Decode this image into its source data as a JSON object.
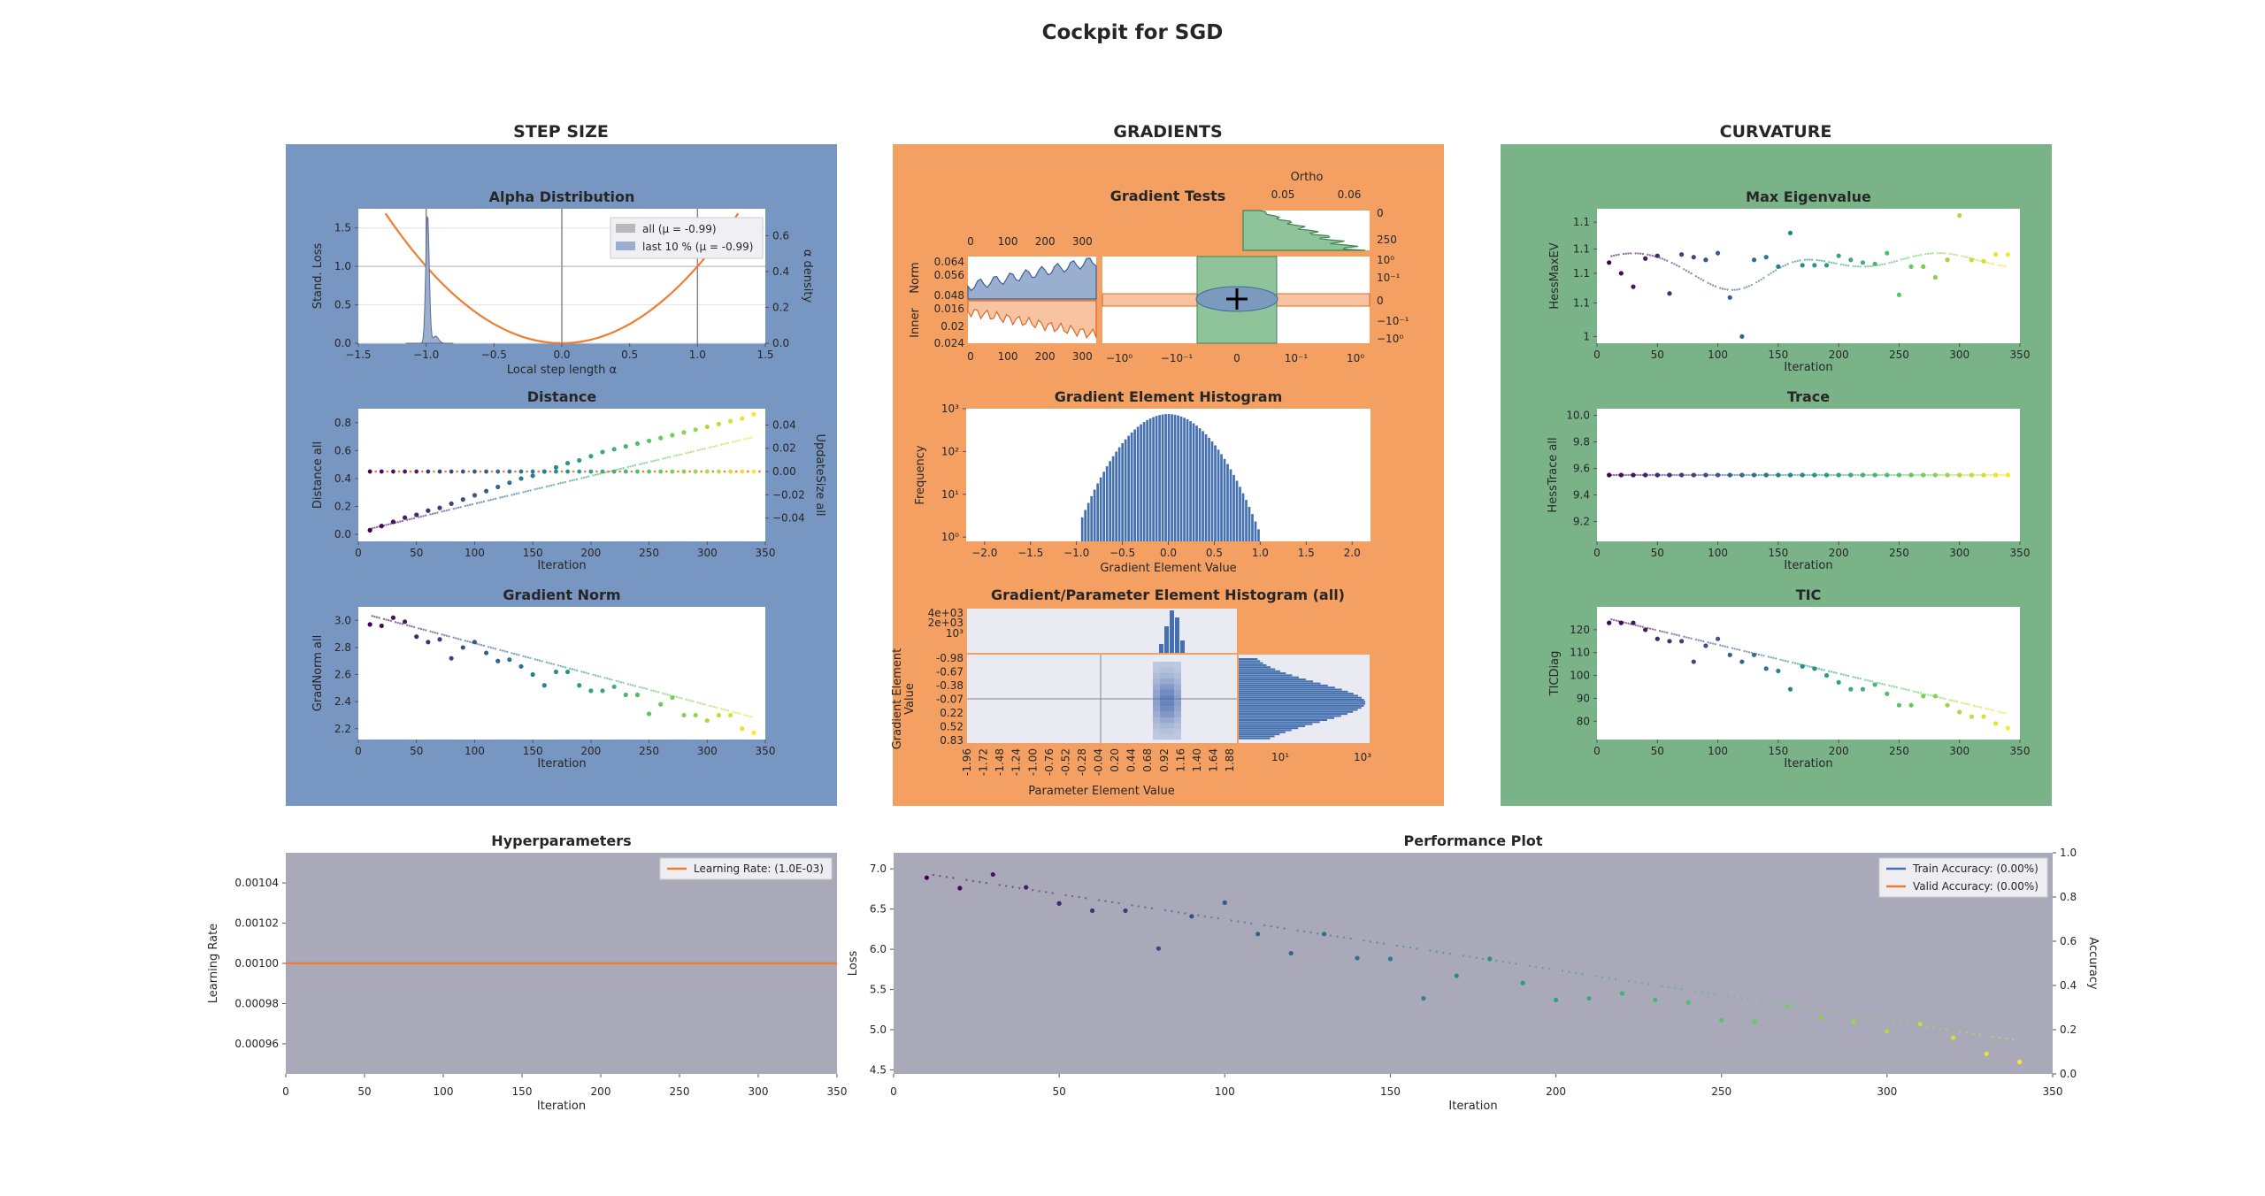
{
  "figure": {
    "title": "Cockpit for SGD"
  },
  "sections": {
    "step_size": "STEP SIZE",
    "gradients": "GRADIENTS",
    "curvature": "CURVATURE"
  },
  "colors": {
    "step_size_bg": "#7896c2",
    "gradients_bg": "#f4a063",
    "curvature_bg": "#7bb389",
    "plot_bg": "#ffffff",
    "hyper_bg": "#a9a9b9",
    "orange": "#ee7d32",
    "blue": "#4470b0",
    "green": "#418553"
  },
  "chart_data": [
    {
      "id": "alpha",
      "type": "line",
      "title": "Alpha Distribution",
      "xlabel": "Local step length α",
      "ylabel": "Stand. Loss",
      "ylabel_right": "α density",
      "xlim": [
        -1.5,
        1.5
      ],
      "ylim": [
        0,
        1.75
      ],
      "ylim_right": [
        0,
        0.75
      ],
      "xticks": [
        "−1.5",
        "−1.0",
        "−0.5",
        "0.0",
        "0.5",
        "1.0",
        "1.5"
      ],
      "yticks": [
        "0.0",
        "0.5",
        "1.0",
        "1.5"
      ],
      "yticks_right": [
        "0.0",
        "0.2",
        "0.4",
        "0.6"
      ],
      "legend": [
        "all (μ = -0.99)",
        "last 10 % (μ = -0.99)"
      ],
      "legend_position": "top-right",
      "parabola": "y = x²",
      "vertical_lines": [
        -1,
        0,
        1
      ],
      "density_peak_x": -0.99
    },
    {
      "id": "distance",
      "type": "scatter",
      "title": "Distance",
      "xlabel": "Iteration",
      "ylabel": "Distance all",
      "ylabel_right": "UpdateSize all",
      "xlim": [
        0,
        350
      ],
      "ylim": [
        -0.05,
        0.9
      ],
      "ylim_right": [
        -0.06,
        0.054
      ],
      "xticks": [
        "0",
        "50",
        "100",
        "150",
        "200",
        "250",
        "300",
        "350"
      ],
      "yticks": [
        "0.0",
        "0.2",
        "0.4",
        "0.6",
        "0.8"
      ],
      "yticks_right": [
        "−0.04",
        "−0.02",
        "0.00",
        "0.02",
        "0.04"
      ],
      "x": [
        10,
        20,
        30,
        40,
        50,
        60,
        70,
        80,
        90,
        100,
        110,
        120,
        130,
        140,
        150,
        160,
        170,
        180,
        190,
        200,
        210,
        220,
        230,
        240,
        250,
        260,
        270,
        280,
        290,
        300,
        310,
        320,
        330,
        340
      ],
      "distance": [
        0.03,
        0.06,
        0.09,
        0.12,
        0.14,
        0.17,
        0.19,
        0.22,
        0.25,
        0.28,
        0.31,
        0.34,
        0.37,
        0.4,
        0.42,
        0.45,
        0.48,
        0.51,
        0.53,
        0.56,
        0.59,
        0.61,
        0.63,
        0.65,
        0.67,
        0.69,
        0.71,
        0.73,
        0.75,
        0.77,
        0.79,
        0.81,
        0.83,
        0.86
      ],
      "update_size": [
        0,
        0,
        0,
        0,
        0,
        0,
        0,
        0,
        0,
        0,
        0,
        0,
        0,
        0,
        0,
        0,
        0,
        0,
        0,
        0,
        0,
        0,
        0,
        0,
        0,
        0,
        0,
        0,
        0,
        0,
        0,
        0,
        0,
        0
      ]
    },
    {
      "id": "gradnorm",
      "type": "scatter",
      "title": "Gradient Norm",
      "xlabel": "Iteration",
      "ylabel": "GradNorm all",
      "xlim": [
        0,
        350
      ],
      "ylim": [
        2.12,
        3.1
      ],
      "xticks": [
        "0",
        "50",
        "100",
        "150",
        "200",
        "250",
        "300",
        "350"
      ],
      "yticks": [
        "2.2",
        "2.4",
        "2.6",
        "2.8",
        "3.0"
      ],
      "x": [
        10,
        20,
        30,
        40,
        50,
        60,
        70,
        80,
        90,
        100,
        110,
        120,
        130,
        140,
        150,
        160,
        170,
        180,
        190,
        200,
        210,
        220,
        230,
        240,
        250,
        260,
        270,
        280,
        290,
        300,
        310,
        320,
        330,
        340
      ],
      "y": [
        2.97,
        2.96,
        3.02,
        2.99,
        2.88,
        2.84,
        2.86,
        2.72,
        2.8,
        2.84,
        2.76,
        2.7,
        2.71,
        2.66,
        2.6,
        2.52,
        2.62,
        2.62,
        2.52,
        2.48,
        2.48,
        2.51,
        2.45,
        2.45,
        2.31,
        2.38,
        2.43,
        2.3,
        2.3,
        2.26,
        2.3,
        2.3,
        2.2,
        2.17
      ]
    },
    {
      "id": "gradtests",
      "type": "line",
      "title": "Gradient Tests",
      "ortho_label": "Ortho",
      "ortho_xticks": [
        "0.05",
        "0.06"
      ],
      "ortho_yticks": [
        "0",
        "250"
      ],
      "norm_label": "Norm",
      "inner_label": "Inner",
      "norm_yticks": [
        "0.064",
        "0.056",
        "0.048"
      ],
      "inner_yticks": [
        "0.016",
        "0.02",
        "0.024"
      ],
      "top_xticks": [
        "0",
        "100",
        "200",
        "300"
      ],
      "bottom_xticks": [
        "0",
        "100",
        "200",
        "300"
      ],
      "center_xticks": [
        "−10⁰",
        "−10⁻¹",
        "0",
        "10⁻¹",
        "10⁰"
      ],
      "center_yticks": [
        "10⁰",
        "10⁻¹",
        "0",
        "−10⁻¹",
        "−10⁰"
      ]
    },
    {
      "id": "gradhist",
      "type": "bar",
      "title": "Gradient Element Histogram",
      "xlabel": "Gradient Element Value",
      "ylabel": "Frequency",
      "xlim": [
        -2.2,
        2.2
      ],
      "ylim_log10": [
        -0.1,
        3
      ],
      "xticks": [
        "−2.0",
        "−1.5",
        "−1.0",
        "−0.5",
        "0.0",
        "0.5",
        "1.0",
        "1.5",
        "2.0"
      ],
      "yticks": [
        "10⁰",
        "10¹",
        "10²",
        "10³"
      ],
      "distribution": "approximately normal, std 0.28, range −0.95 to 1.07",
      "peak_count": 750
    },
    {
      "id": "gphist",
      "type": "heatmap",
      "title": "Gradient/Parameter Element Histogram (all)",
      "xlabel": "Parameter Element Value",
      "ylabel": "Gradient Element Value",
      "top_yticks": [
        "4e+03",
        "2e+03",
        "10³"
      ],
      "right_xticks": [
        "10¹",
        "10³"
      ],
      "xticks": [
        "-1.96",
        "-1.72",
        "-1.48",
        "-1.24",
        "-1.00",
        "-0.76",
        "-0.52",
        "-0.28",
        "-0.04",
        "0.20",
        "0.44",
        "0.68",
        "0.92",
        "1.16",
        "1.40",
        "1.64",
        "1.88"
      ],
      "yticks": [
        "-0.98",
        "-0.67",
        "-0.38",
        "-0.07",
        "0.22",
        "0.52",
        "0.83"
      ]
    },
    {
      "id": "maxeig",
      "type": "scatter",
      "title": "Max Eigenvalue",
      "xlabel": "Iteration",
      "ylabel": "HessMaxEV",
      "xlim": [
        0,
        350
      ],
      "ylim": [
        0,
        1
      ],
      "xticks": [
        "0",
        "50",
        "100",
        "150",
        "200",
        "250",
        "300",
        "350"
      ],
      "yticks": [
        "1",
        "1.1",
        "1.1",
        "1.1",
        "1.1"
      ],
      "x": [
        10,
        20,
        30,
        40,
        50,
        60,
        70,
        80,
        90,
        100,
        110,
        120,
        130,
        140,
        150,
        160,
        170,
        180,
        190,
        200,
        210,
        220,
        230,
        240,
        250,
        260,
        270,
        280,
        290,
        300,
        310,
        320,
        330,
        340
      ],
      "y_fraction": [
        0.6,
        0.52,
        0.42,
        0.63,
        0.65,
        0.37,
        0.66,
        0.64,
        0.62,
        0.67,
        0.34,
        0.05,
        0.62,
        0.64,
        0.57,
        0.82,
        0.58,
        0.58,
        0.58,
        0.65,
        0.62,
        0.6,
        0.59,
        0.67,
        0.36,
        0.57,
        0.57,
        0.49,
        0.62,
        0.95,
        0.62,
        0.61,
        0.66,
        0.66
      ]
    },
    {
      "id": "trace",
      "type": "scatter",
      "title": "Trace",
      "xlabel": "Iteration",
      "ylabel": "HessTrace all",
      "xlim": [
        0,
        350
      ],
      "ylim": [
        9.05,
        10.05
      ],
      "xticks": [
        "0",
        "50",
        "100",
        "150",
        "200",
        "250",
        "300",
        "350"
      ],
      "yticks": [
        "9.2",
        "9.4",
        "9.6",
        "9.8",
        "10.0"
      ],
      "x": [
        10,
        20,
        30,
        40,
        50,
        60,
        70,
        80,
        90,
        100,
        110,
        120,
        130,
        140,
        150,
        160,
        170,
        180,
        190,
        200,
        210,
        220,
        230,
        240,
        250,
        260,
        270,
        280,
        290,
        300,
        310,
        320,
        330,
        340
      ],
      "y": [
        9.55,
        9.55,
        9.55,
        9.55,
        9.55,
        9.55,
        9.55,
        9.55,
        9.55,
        9.55,
        9.55,
        9.55,
        9.55,
        9.55,
        9.55,
        9.55,
        9.55,
        9.55,
        9.55,
        9.55,
        9.55,
        9.55,
        9.55,
        9.55,
        9.55,
        9.55,
        9.55,
        9.55,
        9.55,
        9.55,
        9.55,
        9.55,
        9.55,
        9.55
      ]
    },
    {
      "id": "tic",
      "type": "scatter",
      "title": "TIC",
      "xlabel": "Iteration",
      "ylabel": "TICDiag",
      "xlim": [
        0,
        350
      ],
      "ylim": [
        72,
        130
      ],
      "xticks": [
        "0",
        "50",
        "100",
        "150",
        "200",
        "250",
        "300",
        "350"
      ],
      "yticks": [
        "80",
        "90",
        "100",
        "110",
        "120"
      ],
      "x": [
        10,
        20,
        30,
        40,
        50,
        60,
        70,
        80,
        90,
        100,
        110,
        120,
        130,
        140,
        150,
        160,
        170,
        180,
        190,
        200,
        210,
        220,
        230,
        240,
        250,
        260,
        270,
        280,
        290,
        300,
        310,
        320,
        330,
        340
      ],
      "y": [
        123,
        123,
        123,
        120,
        116,
        115,
        115,
        106,
        113,
        116,
        109,
        106,
        109,
        103,
        102,
        94,
        104,
        103,
        100,
        97,
        94,
        94,
        96,
        92,
        87,
        87,
        91,
        91,
        87,
        84,
        82,
        82,
        79,
        77
      ]
    },
    {
      "id": "hyper",
      "type": "line",
      "title": "Hyperparameters",
      "xlabel": "Iteration",
      "ylabel": "Learning Rate",
      "xlim": [
        0,
        350
      ],
      "ylim": [
        0.000945,
        0.001055
      ],
      "xticks": [
        "0",
        "50",
        "100",
        "150",
        "200",
        "250",
        "300",
        "350"
      ],
      "yticks": [
        "0.00096",
        "0.00098",
        "0.00100",
        "0.00102",
        "0.00104"
      ],
      "legend": [
        "Learning Rate: (1.0E-03)"
      ],
      "legend_position": "top-right",
      "series": [
        {
          "name": "Learning Rate: (1.0E-03)",
          "x": [
            0,
            350
          ],
          "values": [
            0.001,
            0.001
          ]
        }
      ]
    },
    {
      "id": "perf",
      "type": "scatter",
      "title": "Performance Plot",
      "xlabel": "Iteration",
      "ylabel": "Loss",
      "ylabel_right": "Accuracy",
      "xlim": [
        0,
        350
      ],
      "ylim": [
        4.45,
        7.2
      ],
      "ylim_right": [
        0,
        1
      ],
      "xticks": [
        "0",
        "50",
        "100",
        "150",
        "200",
        "250",
        "300",
        "350"
      ],
      "yticks": [
        "4.5",
        "5.0",
        "5.5",
        "6.0",
        "6.5",
        "7.0"
      ],
      "yticks_right": [
        "0.0",
        "0.2",
        "0.4",
        "0.6",
        "0.8",
        "1.0"
      ],
      "legend": [
        "Train Accuracy: (0.00%)",
        "Valid Accuracy: (0.00%)"
      ],
      "legend_position": "top-right",
      "x": [
        10,
        20,
        30,
        40,
        50,
        60,
        70,
        80,
        90,
        100,
        110,
        120,
        130,
        140,
        150,
        160,
        170,
        180,
        190,
        200,
        210,
        220,
        230,
        240,
        250,
        260,
        270,
        280,
        290,
        300,
        310,
        320,
        330,
        340
      ],
      "loss": [
        6.89,
        6.76,
        6.93,
        6.77,
        6.57,
        6.48,
        6.48,
        6.01,
        6.41,
        6.58,
        6.19,
        5.95,
        6.19,
        5.89,
        5.88,
        5.39,
        5.67,
        5.88,
        5.58,
        5.37,
        5.39,
        5.45,
        5.37,
        5.34,
        5.12,
        5.1,
        5.3,
        5.15,
        5.1,
        4.98,
        5.07,
        4.9,
        4.7,
        4.6
      ]
    }
  ]
}
